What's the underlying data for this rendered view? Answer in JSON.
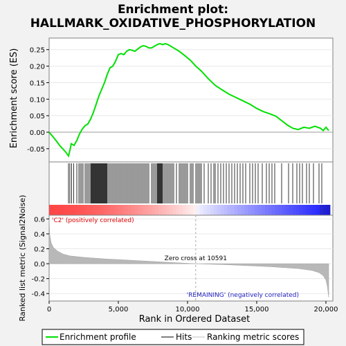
{
  "chart_data": {
    "type": "line",
    "title_line1": "Enrichment plot:",
    "title_line2": "HALLMARK_OXIDATIVE_PHOSPHORYLATION",
    "top_panel": {
      "ylabel": "Enrichment score (ES)",
      "ylim": [
        -0.09,
        0.285
      ],
      "yticks": [
        "0.25",
        "0.20",
        "0.15",
        "0.10",
        "0.05",
        "0.00",
        "-0.05"
      ],
      "ytick_values": [
        0.25,
        0.2,
        0.15,
        0.1,
        0.05,
        0.0,
        -0.05
      ],
      "series": [
        {
          "name": "Enrichment profile",
          "color": "#00e000",
          "x": [
            0,
            400,
            800,
            1200,
            1400,
            1500,
            1600,
            1800,
            2000,
            2200,
            2400,
            2600,
            2800,
            3000,
            3200,
            3400,
            3600,
            3800,
            4000,
            4200,
            4400,
            4600,
            4800,
            5000,
            5200,
            5400,
            5600,
            5800,
            6000,
            6200,
            6400,
            6600,
            6800,
            7000,
            7200,
            7400,
            7600,
            7800,
            8000,
            8200,
            8400,
            8600,
            8800,
            9000,
            9400,
            9800,
            10200,
            10600,
            11000,
            11500,
            12000,
            12500,
            13000,
            13500,
            14000,
            14500,
            15000,
            15500,
            16000,
            16400,
            16800,
            17200,
            17600,
            18000,
            18400,
            18800,
            19200,
            19600,
            19800,
            20000,
            20200
          ],
          "y": [
            0.0,
            -0.02,
            -0.042,
            -0.06,
            -0.072,
            -0.055,
            -0.035,
            -0.04,
            -0.025,
            -0.005,
            0.01,
            0.02,
            0.025,
            0.04,
            0.06,
            0.085,
            0.11,
            0.13,
            0.15,
            0.175,
            0.195,
            0.2,
            0.215,
            0.235,
            0.238,
            0.235,
            0.245,
            0.25,
            0.248,
            0.245,
            0.252,
            0.258,
            0.262,
            0.26,
            0.255,
            0.255,
            0.26,
            0.265,
            0.268,
            0.265,
            0.268,
            0.265,
            0.26,
            0.255,
            0.245,
            0.232,
            0.218,
            0.2,
            0.185,
            0.162,
            0.142,
            0.128,
            0.115,
            0.105,
            0.095,
            0.085,
            0.072,
            0.062,
            0.055,
            0.048,
            0.035,
            0.022,
            0.012,
            0.008,
            0.015,
            0.012,
            0.018,
            0.012,
            0.005,
            0.015,
            0.005
          ]
        }
      ]
    },
    "bottom_panel": {
      "ylabel": "Ranked list metric (Signal2Noise)",
      "ylim": [
        -0.5,
        0.65
      ],
      "yticks": [
        "0.6",
        "0.4",
        "0.2",
        "0.0",
        "-0.2",
        "-0.4"
      ],
      "ytick_values": [
        0.6,
        0.4,
        0.2,
        0.0,
        -0.2,
        -0.4
      ],
      "metric_points": {
        "x": [
          0,
          50,
          150,
          300,
          600,
          1000,
          1500,
          2500,
          4000,
          6000,
          8000,
          10591,
          13000,
          16000,
          18000,
          19000,
          19500,
          19800,
          20000,
          20100,
          20200
        ],
        "y": [
          0.6,
          0.38,
          0.28,
          0.22,
          0.17,
          0.13,
          0.105,
          0.085,
          0.065,
          0.045,
          0.025,
          0.0,
          -0.015,
          -0.04,
          -0.065,
          -0.09,
          -0.12,
          -0.16,
          -0.22,
          -0.3,
          -0.45
        ]
      },
      "pos_label": "'C2' (positively correlated)",
      "neg_label": "'REMAINING' (negatively correlated)",
      "zero_cross_label": "Zero cross at 10591",
      "zero_cross": 10591
    },
    "xaxis": {
      "xlabel": "Rank in Ordered Dataset",
      "xlim": [
        0,
        20500
      ],
      "xticks": [
        "0",
        "5,000",
        "10,000",
        "15,000",
        "20,000"
      ],
      "xtick_values": [
        0,
        5000,
        10000,
        15000,
        20000
      ]
    },
    "hits": [
      1400,
      1500,
      1620,
      1780,
      2000,
      2150,
      2250,
      2350,
      2450,
      2600,
      2700,
      2800,
      2900,
      3000,
      3050,
      3100,
      3150,
      3200,
      3250,
      3300,
      3350,
      3400,
      3450,
      3500,
      3550,
      3600,
      3650,
      3700,
      3750,
      3800,
      3850,
      3900,
      3950,
      4000,
      4050,
      4100,
      4150,
      4200,
      4300,
      4400,
      4500,
      4600,
      4700,
      4800,
      4900,
      5000,
      5100,
      5200,
      5300,
      5400,
      5500,
      5600,
      5700,
      5800,
      5900,
      6000,
      6100,
      6200,
      6300,
      6400,
      6500,
      6600,
      6700,
      6800,
      6900,
      7000,
      7100,
      7200,
      7400,
      7500,
      7600,
      7700,
      7800,
      7850,
      7900,
      7950,
      8000,
      8050,
      8100,
      8150,
      8200,
      8300,
      8400,
      8500,
      8600,
      8700,
      8800,
      8900,
      9000,
      9200,
      9400,
      9500,
      9600,
      9700,
      9800,
      9900,
      10000,
      10200,
      10300,
      10400,
      10600,
      10700,
      10800,
      10900,
      11000,
      11200,
      11500,
      11700,
      11900,
      12000,
      12200,
      12400,
      12600,
      12800,
      13000,
      13200,
      13400,
      13600,
      13800,
      14000,
      14200,
      14500,
      14700,
      14900,
      15100,
      15400,
      15700,
      15900,
      16100,
      16300,
      16800,
      17300,
      17600,
      17900,
      18100,
      18300,
      18600,
      18800,
      19100,
      19500,
      19700
    ],
    "legend": {
      "items": [
        "Enrichment profile",
        "Hits",
        "Ranking metric scores"
      ]
    }
  }
}
